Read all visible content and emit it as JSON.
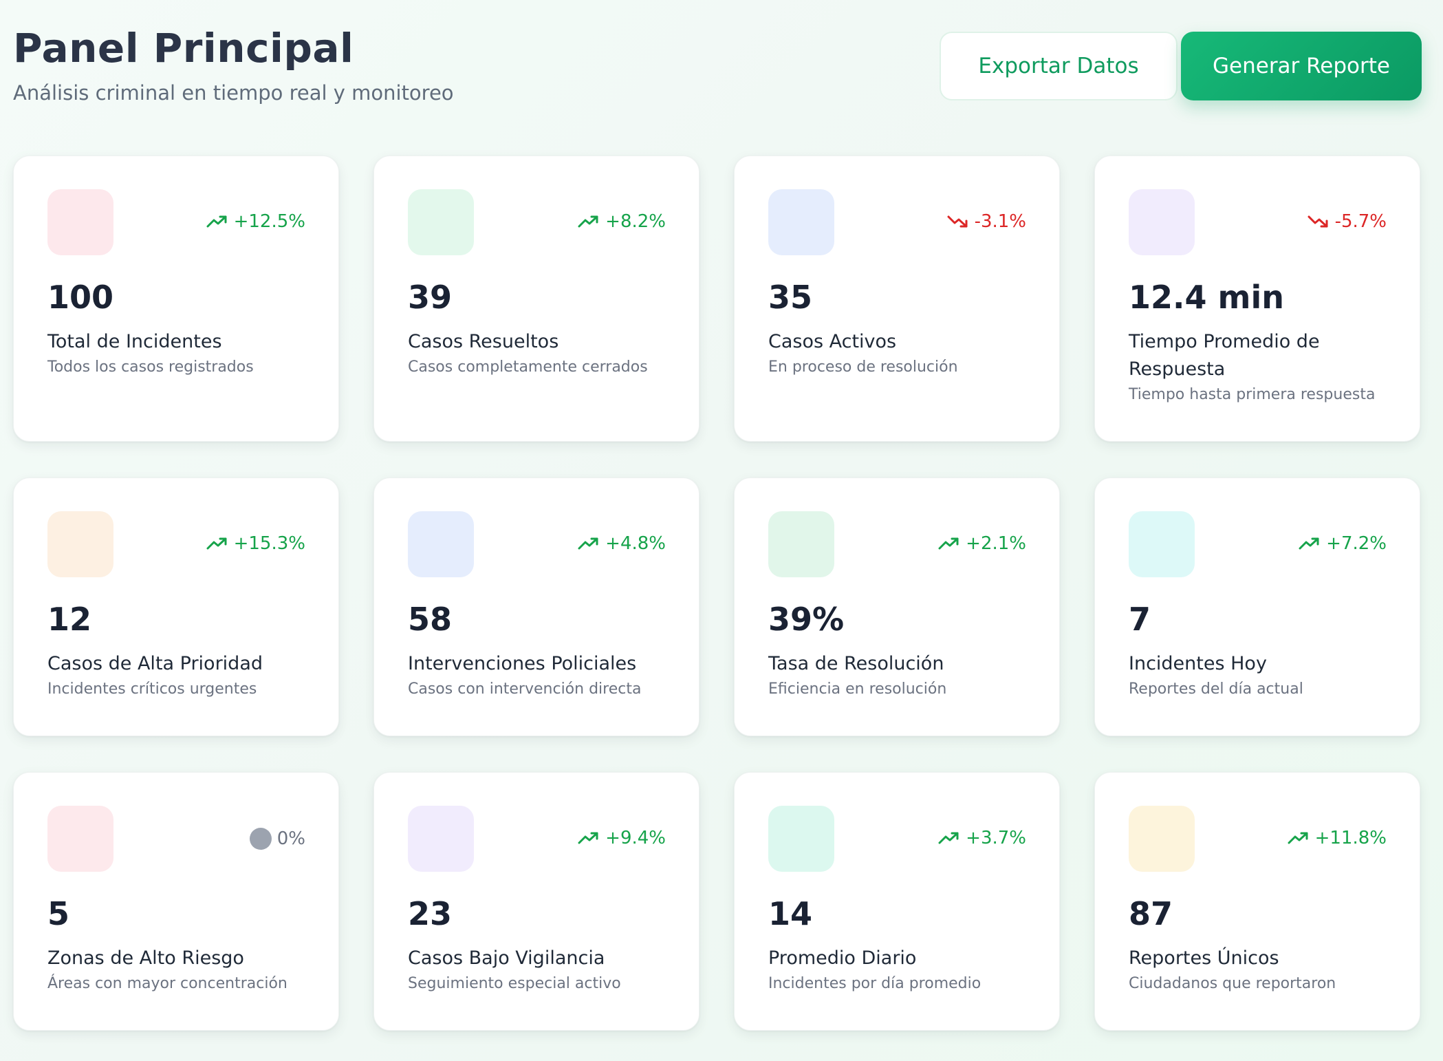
{
  "header": {
    "title": "Panel Principal",
    "subtitle": "Análisis criminal en tiempo real y monitoreo",
    "export_label": "Exportar Datos",
    "report_label": "Generar Reporte"
  },
  "colors": {
    "accent": "#10b070",
    "trend_up": "#16a34a",
    "trend_down": "#dc2626",
    "trend_neutral": "#9ca3af"
  },
  "cards": [
    {
      "value": "100",
      "label": "Total de Incidentes",
      "desc": "Todos los casos registrados",
      "trend": "+12.5%",
      "trend_dir": "up",
      "icon_color": "#fde8ec"
    },
    {
      "value": "39",
      "label": "Casos Resueltos",
      "desc": "Casos completamente cerrados",
      "trend": "+8.2%",
      "trend_dir": "up",
      "icon_color": "#e3f8ec"
    },
    {
      "value": "35",
      "label": "Casos Activos",
      "desc": "En proceso de resolución",
      "trend": "-3.1%",
      "trend_dir": "down",
      "icon_color": "#e5edfd"
    },
    {
      "value": "12.4 min",
      "label": "Tiempo Promedio de Respuesta",
      "desc": "Tiempo hasta primera respuesta",
      "trend": "-5.7%",
      "trend_dir": "down",
      "icon_color": "#f1ecfd"
    },
    {
      "value": "12",
      "label": "Casos de Alta Prioridad",
      "desc": "Incidentes críticos urgentes",
      "trend": "+15.3%",
      "trend_dir": "up",
      "icon_color": "#fdf0e2"
    },
    {
      "value": "58",
      "label": "Intervenciones Policiales",
      "desc": "Casos con intervención directa",
      "trend": "+4.8%",
      "trend_dir": "up",
      "icon_color": "#e5edfd"
    },
    {
      "value": "39%",
      "label": "Tasa de Resolución",
      "desc": "Eficiencia en resolución",
      "trend": "+2.1%",
      "trend_dir": "up",
      "icon_color": "#e1f6ea"
    },
    {
      "value": "7",
      "label": "Incidentes Hoy",
      "desc": "Reportes del día actual",
      "trend": "+7.2%",
      "trend_dir": "up",
      "icon_color": "#ddf9f8"
    },
    {
      "value": "5",
      "label": "Zonas de Alto Riesgo",
      "desc": "Áreas con mayor concentración",
      "trend": "0%",
      "trend_dir": "neutral",
      "icon_color": "#fde9ec"
    },
    {
      "value": "23",
      "label": "Casos Bajo Vigilancia",
      "desc": "Seguimiento especial activo",
      "trend": "+9.4%",
      "trend_dir": "up",
      "icon_color": "#f1ecfd"
    },
    {
      "value": "14",
      "label": "Promedio Diario",
      "desc": "Incidentes por día promedio",
      "trend": "+3.7%",
      "trend_dir": "up",
      "icon_color": "#dcf8ef"
    },
    {
      "value": "87",
      "label": "Reportes Únicos",
      "desc": "Ciudadanos que reportaron",
      "trend": "+11.8%",
      "trend_dir": "up",
      "icon_color": "#fdf4dc"
    }
  ]
}
